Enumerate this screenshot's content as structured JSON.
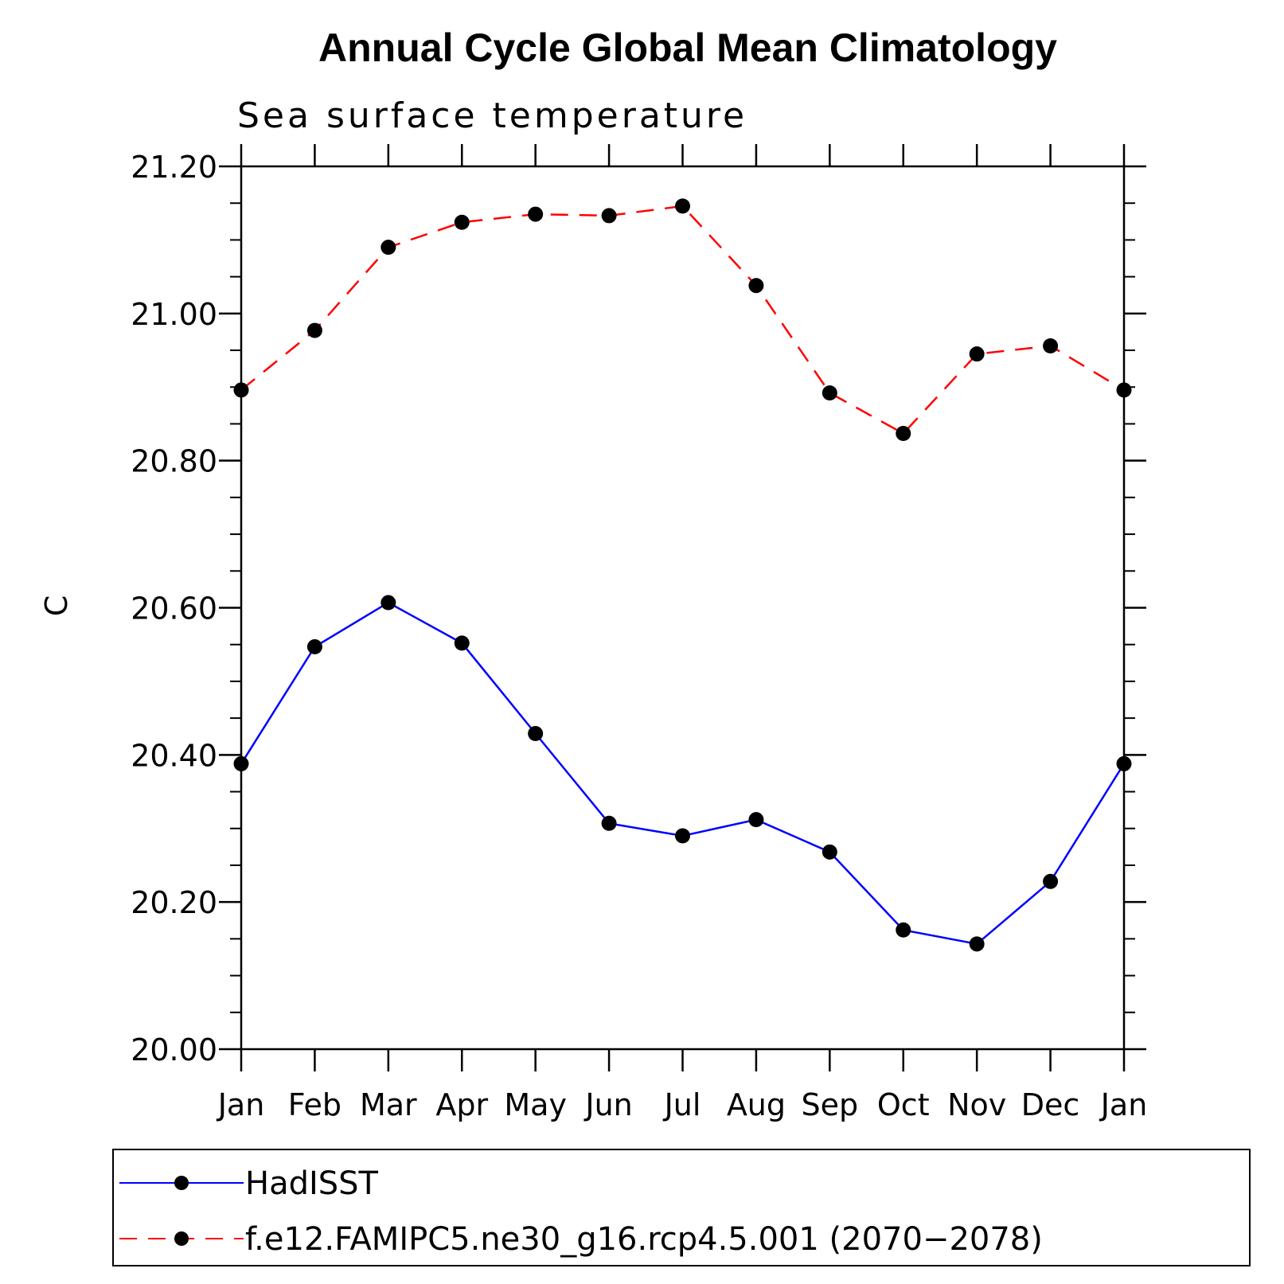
{
  "chart_data": {
    "type": "line",
    "title": "Annual Cycle Global Mean Climatology",
    "subtitle": "Sea surface temperature",
    "xlabel": "",
    "ylabel": "C",
    "categories": [
      "Jan",
      "Feb",
      "Mar",
      "Apr",
      "May",
      "Jun",
      "Jul",
      "Aug",
      "Sep",
      "Oct",
      "Nov",
      "Dec",
      "Jan"
    ],
    "ylim": [
      20.0,
      21.2
    ],
    "yticks": [
      "20.00",
      "20.20",
      "20.40",
      "20.60",
      "20.80",
      "21.00",
      "21.20"
    ],
    "ytick_values": [
      20.0,
      20.2,
      20.4,
      20.6,
      20.8,
      21.0,
      21.2
    ],
    "y_minor_step": 0.05,
    "series": [
      {
        "name": "HadISST",
        "color": "#0000ff",
        "dash": "solid",
        "marker": "dot",
        "values": [
          20.388,
          20.547,
          20.607,
          20.552,
          20.429,
          20.307,
          20.29,
          20.312,
          20.268,
          20.162,
          20.143,
          20.228,
          20.388
        ]
      },
      {
        "name": "f.e12.FAMIPC5.ne30_g16.rcp4.5.001 (2070−2078)",
        "color": "#ff0000",
        "dash": "dashed",
        "marker": "dot",
        "values": [
          20.896,
          20.977,
          21.09,
          21.124,
          21.135,
          21.133,
          21.146,
          21.038,
          20.892,
          20.837,
          20.945,
          20.956,
          20.896
        ]
      }
    ],
    "legend_position": "bottom"
  }
}
